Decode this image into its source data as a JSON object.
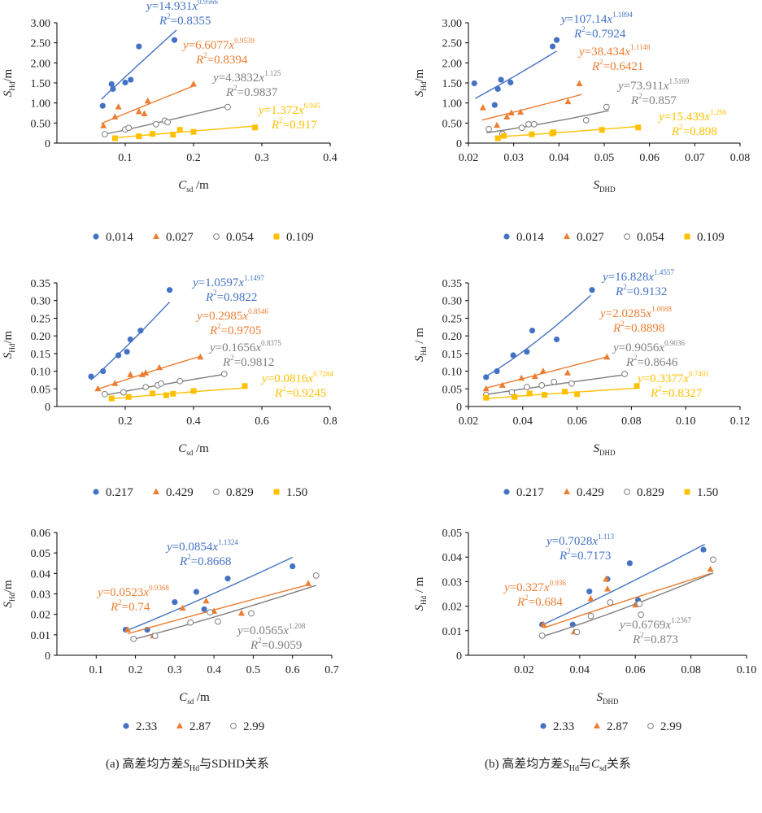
{
  "colors": {
    "s0": "#4472c4",
    "s1": "#ed7d31",
    "s2": "#7f7f7f",
    "s3": "#ffc000",
    "axis": "#000000",
    "text": "#222222"
  },
  "captions": [
    {
      "pre": "(a) 高差均方差",
      "sym": "S",
      "sub": "Hd",
      "post": "与SDHD关系"
    },
    {
      "pre": "(b) 高差均方差",
      "sym": "S",
      "sub": "Hd",
      "post": "与",
      "sym2": "C",
      "sub2": "sd",
      "post2": "关系"
    }
  ],
  "chart_data": [
    {
      "type": "scatter",
      "ylabel": "SHd/m",
      "xlabel": "Csd /m",
      "xlim": [
        0,
        0.4
      ],
      "xticks": [
        0.1,
        0.2,
        0.3,
        0.4
      ],
      "xtick_labels": [
        "0.1",
        "0.2",
        "0.3",
        "0.4"
      ],
      "ylim": [
        0,
        3.0
      ],
      "yticks": [
        0,
        0.5,
        1.0,
        1.5,
        2.0,
        2.5,
        3.0
      ],
      "ytick_labels": [
        "0",
        "0.50",
        "1.00",
        "1.50",
        "2.00",
        "2.50",
        "3.00"
      ],
      "legend_position": "bottom",
      "series": [
        {
          "name": "0.014",
          "marker": "circle",
          "x": [
            0.067,
            0.082,
            0.08,
            0.1,
            0.108,
            0.12,
            0.172
          ],
          "y": [
            0.93,
            1.35,
            1.47,
            1.51,
            1.58,
            2.41,
            2.57
          ],
          "fit": {
            "a": 14.931,
            "b": 0.9566,
            "coef": "14.931",
            "exp": "0.9566",
            "r2": "0.8355",
            "x0": 0.065,
            "x1": 0.175
          }
        },
        {
          "name": "0.027",
          "marker": "triangle",
          "x": [
            0.068,
            0.085,
            0.09,
            0.12,
            0.128,
            0.133,
            0.2
          ],
          "y": [
            0.43,
            0.65,
            0.9,
            0.78,
            0.73,
            1.05,
            1.47
          ],
          "fit": {
            "a": 6.6077,
            "b": 0.9539,
            "coef": "6.6077",
            "exp": "0.9539",
            "r2": "0.8394",
            "x0": 0.065,
            "x1": 0.2
          }
        },
        {
          "name": "0.054",
          "marker": "open-circle",
          "x": [
            0.07,
            0.1,
            0.105,
            0.145,
            0.158,
            0.162,
            0.25
          ],
          "y": [
            0.22,
            0.34,
            0.38,
            0.47,
            0.56,
            0.52,
            0.9
          ],
          "fit": {
            "a": 4.3832,
            "b": 1.125,
            "coef": "4.3832",
            "exp": "1.125",
            "r2": "0.9837",
            "x0": 0.07,
            "x1": 0.25
          }
        },
        {
          "name": "0.109",
          "marker": "square",
          "x": [
            0.085,
            0.12,
            0.14,
            0.17,
            0.18,
            0.2,
            0.29
          ],
          "y": [
            0.12,
            0.17,
            0.23,
            0.21,
            0.33,
            0.28,
            0.39
          ],
          "fit": {
            "a": 1.372,
            "b": 0.945,
            "coef": "1.372",
            "exp": "0.945",
            "r2": "0.917",
            "x0": 0.085,
            "x1": 0.29
          }
        }
      ]
    },
    {
      "type": "scatter",
      "ylabel": "SHd/m",
      "xlabel": "SDHD",
      "xlim": [
        0.02,
        0.08
      ],
      "xticks": [
        0.02,
        0.03,
        0.04,
        0.05,
        0.06,
        0.07,
        0.08
      ],
      "xtick_labels": [
        "0.02",
        "0.03",
        "0.04",
        "0.05",
        "0.06",
        "0.07",
        "0.08"
      ],
      "ylim": [
        0,
        3.0
      ],
      "yticks": [
        0,
        0.5,
        1.0,
        1.5,
        2.0,
        2.5,
        3.0
      ],
      "ytick_labels": [
        "0",
        "0.50",
        "1.00",
        "1.50",
        "2.00",
        "2.50",
        "3.00"
      ],
      "legend_position": "bottom",
      "series": [
        {
          "name": "0.014",
          "marker": "circle",
          "x": [
            0.0213,
            0.0258,
            0.0265,
            0.0272,
            0.0293,
            0.0386,
            0.0395
          ],
          "y": [
            1.49,
            0.95,
            1.35,
            1.58,
            1.51,
            2.41,
            2.57
          ],
          "fit": {
            "a": 107.14,
            "b": 1.1894,
            "coef": "107.14",
            "exp": "1.1894",
            "r2": "0.7924",
            "x0": 0.0215,
            "x1": 0.0395
          }
        },
        {
          "name": "0.027",
          "marker": "triangle",
          "x": [
            0.0232,
            0.0263,
            0.0285,
            0.0295,
            0.0315,
            0.042,
            0.0445
          ],
          "y": [
            0.88,
            0.44,
            0.65,
            0.75,
            0.77,
            1.03,
            1.48
          ],
          "fit": {
            "a": 38.434,
            "b": 1.1148,
            "coef": "38.434",
            "exp": "1.1148",
            "r2": "0.6421",
            "x0": 0.023,
            "x1": 0.045
          }
        },
        {
          "name": "0.054",
          "marker": "open-circle",
          "x": [
            0.0245,
            0.0275,
            0.0318,
            0.0333,
            0.0345,
            0.046,
            0.0505
          ],
          "y": [
            0.35,
            0.23,
            0.38,
            0.47,
            0.47,
            0.57,
            0.9
          ],
          "fit": {
            "a": 73.911,
            "b": 1.5169,
            "coef": "73.911",
            "exp": "1.5169",
            "r2": "0.857",
            "x0": 0.024,
            "x1": 0.051
          }
        },
        {
          "name": "0.109",
          "marker": "square",
          "x": [
            0.0265,
            0.0278,
            0.034,
            0.0385,
            0.0388,
            0.0495,
            0.0575
          ],
          "y": [
            0.12,
            0.18,
            0.22,
            0.24,
            0.27,
            0.33,
            0.39
          ],
          "fit": {
            "a": 15.439,
            "b": 1.266,
            "coef": "15.439",
            "exp": "1.266",
            "r2": "0.898",
            "x0": 0.0265,
            "x1": 0.0575
          }
        }
      ]
    },
    {
      "type": "scatter",
      "ylabel": "SHd/m",
      "xlabel": "Csd /m",
      "xlim": [
        0,
        0.8
      ],
      "xticks": [
        0.2,
        0.4,
        0.6,
        0.8
      ],
      "xtick_labels": [
        "0.2",
        "0.4",
        "0.6",
        "0.8"
      ],
      "ylim": [
        0,
        0.35
      ],
      "yticks": [
        0,
        0.05,
        0.1,
        0.15,
        0.2,
        0.25,
        0.3,
        0.35
      ],
      "ytick_labels": [
        "0",
        "0.05",
        "0.10",
        "0.15",
        "0.20",
        "0.25",
        "0.30",
        "0.35"
      ],
      "legend_position": "bottom",
      "series": [
        {
          "name": "0.217",
          "marker": "circle",
          "x": [
            0.1,
            0.135,
            0.18,
            0.205,
            0.215,
            0.245,
            0.33
          ],
          "y": [
            0.085,
            0.1,
            0.145,
            0.155,
            0.19,
            0.215,
            0.33
          ],
          "fit": {
            "a": 1.0597,
            "b": 1.1497,
            "coef": "1.0597",
            "exp": "1.1497",
            "r2": "0.9822",
            "x0": 0.1,
            "x1": 0.33
          }
        },
        {
          "name": "0.429",
          "marker": "triangle",
          "x": [
            0.12,
            0.17,
            0.215,
            0.25,
            0.26,
            0.3,
            0.42
          ],
          "y": [
            0.05,
            0.065,
            0.09,
            0.09,
            0.095,
            0.11,
            0.14
          ],
          "fit": {
            "a": 0.2985,
            "b": 0.8546,
            "coef": "0.2985",
            "exp": "0.8546",
            "r2": "0.9705",
            "x0": 0.12,
            "x1": 0.42
          }
        },
        {
          "name": "0.829",
          "marker": "open-circle",
          "x": [
            0.14,
            0.195,
            0.26,
            0.295,
            0.305,
            0.36,
            0.49
          ],
          "y": [
            0.035,
            0.04,
            0.055,
            0.06,
            0.065,
            0.072,
            0.092
          ],
          "fit": {
            "a": 0.1656,
            "b": 0.8375,
            "coef": "0.1656",
            "exp": "0.8375",
            "r2": "0.9812",
            "x0": 0.14,
            "x1": 0.49
          }
        },
        {
          "name": "1.50",
          "marker": "square",
          "x": [
            0.16,
            0.21,
            0.28,
            0.32,
            0.34,
            0.4,
            0.55
          ],
          "y": [
            0.023,
            0.027,
            0.037,
            0.032,
            0.036,
            0.044,
            0.058
          ],
          "fit": {
            "a": 0.0816,
            "b": 0.7284,
            "coef": "0.0816",
            "exp": "0.7284",
            "r2": "0.9245",
            "x0": 0.16,
            "x1": 0.55
          }
        }
      ]
    },
    {
      "type": "scatter",
      "ylabel": "SHd / m",
      "xlabel": "SDHD",
      "xlim": [
        0.02,
        0.12
      ],
      "xticks": [
        0.02,
        0.04,
        0.06,
        0.08,
        0.1,
        0.12
      ],
      "xtick_labels": [
        "0.02",
        "0.04",
        "0.06",
        "0.08",
        "0.10",
        "0.12"
      ],
      "ylim": [
        0,
        0.35
      ],
      "yticks": [
        0,
        0.05,
        0.1,
        0.15,
        0.2,
        0.25,
        0.3,
        0.35
      ],
      "ytick_labels": [
        "0",
        "0.05",
        "0.10",
        "0.15",
        "0.20",
        "0.25",
        "0.30",
        "0.35"
      ],
      "legend_position": "bottom",
      "series": [
        {
          "name": "0.217",
          "marker": "circle",
          "x": [
            0.0265,
            0.0305,
            0.0365,
            0.0415,
            0.0435,
            0.0525,
            0.0655
          ],
          "y": [
            0.083,
            0.1,
            0.145,
            0.155,
            0.215,
            0.19,
            0.33
          ],
          "fit": {
            "a": 16.828,
            "b": 1.4557,
            "coef": "16.828",
            "exp": "1.4557",
            "r2": "0.9132",
            "x0": 0.0265,
            "x1": 0.065
          }
        },
        {
          "name": "0.429",
          "marker": "triangle",
          "x": [
            0.0265,
            0.0325,
            0.0395,
            0.0445,
            0.0475,
            0.0565,
            0.071
          ],
          "y": [
            0.05,
            0.06,
            0.08,
            0.085,
            0.1,
            0.095,
            0.14
          ],
          "fit": {
            "a": 2.0285,
            "b": 1.0088,
            "coef": "2.0285",
            "exp": "1.0088",
            "r2": "0.8898",
            "x0": 0.0265,
            "x1": 0.071
          }
        },
        {
          "name": "0.829",
          "marker": "open-circle",
          "x": [
            0.0265,
            0.036,
            0.0415,
            0.047,
            0.0515,
            0.058,
            0.0775
          ],
          "y": [
            0.033,
            0.04,
            0.055,
            0.06,
            0.07,
            0.065,
            0.092
          ],
          "fit": {
            "a": 0.9056,
            "b": 0.9036,
            "coef": "0.9056",
            "exp": "0.9036",
            "r2": "0.8646",
            "x0": 0.0265,
            "x1": 0.0775
          }
        },
        {
          "name": "1.50",
          "marker": "square",
          "x": [
            0.0265,
            0.037,
            0.0425,
            0.048,
            0.0555,
            0.06,
            0.082
          ],
          "y": [
            0.025,
            0.027,
            0.037,
            0.033,
            0.042,
            0.035,
            0.058
          ],
          "fit": {
            "a": 0.3377,
            "b": 0.7491,
            "coef": "0.3377",
            "exp": "0.7491",
            "r2": "0.8327",
            "x0": 0.0265,
            "x1": 0.082
          }
        }
      ]
    },
    {
      "type": "scatter",
      "ylabel": "SHd/m",
      "xlabel": "Csd /m",
      "xlim": [
        0,
        0.7
      ],
      "xticks": [
        0.1,
        0.2,
        0.3,
        0.4,
        0.5,
        0.6,
        0.7
      ],
      "xtick_labels": [
        "0.1",
        "0.2",
        "0.3",
        "0.4",
        "0.5",
        "0.6",
        "0.7"
      ],
      "ylim": [
        0,
        0.06
      ],
      "yticks": [
        0,
        0.01,
        0.02,
        0.03,
        0.04,
        0.05,
        0.06
      ],
      "ytick_labels": [
        "0",
        "0.01",
        "0.02",
        "0.03",
        "0.04",
        "0.05",
        "0.06"
      ],
      "legend_position": "bottom",
      "series": [
        {
          "name": "2.33",
          "marker": "circle",
          "x": [
            0.175,
            0.23,
            0.3,
            0.355,
            0.375,
            0.435,
            0.6
          ],
          "y": [
            0.0125,
            0.0125,
            0.026,
            0.031,
            0.0225,
            0.0375,
            0.0435
          ],
          "fit": {
            "a": 0.0854,
            "b": 1.1324,
            "coef": "0.0854",
            "exp": "1.1324",
            "r2": "0.8668",
            "x0": 0.175,
            "x1": 0.6
          }
        },
        {
          "name": "2.87",
          "marker": "triangle",
          "x": [
            0.18,
            0.245,
            0.32,
            0.38,
            0.4,
            0.47,
            0.64
          ],
          "y": [
            0.0125,
            0.0095,
            0.023,
            0.0265,
            0.0215,
            0.0205,
            0.035
          ],
          "fit": {
            "a": 0.0523,
            "b": 0.9368,
            "coef": "0.0523",
            "exp": "0.9368",
            "r2": "0.74",
            "x0": 0.18,
            "x1": 0.64
          }
        },
        {
          "name": "2.99",
          "marker": "open-circle",
          "x": [
            0.195,
            0.25,
            0.34,
            0.39,
            0.41,
            0.495,
            0.66
          ],
          "y": [
            0.008,
            0.0095,
            0.016,
            0.021,
            0.0165,
            0.0205,
            0.039
          ],
          "fit": {
            "a": 0.0565,
            "b": 1.208,
            "coef": "0.0565",
            "exp": "1.208",
            "r2": "0.9059",
            "x0": 0.195,
            "x1": 0.66
          }
        }
      ]
    },
    {
      "type": "scatter",
      "ylabel": "SHd / m",
      "xlabel": "SDHD",
      "xlim": [
        0,
        0.1
      ],
      "xticks": [
        0.02,
        0.04,
        0.06,
        0.08,
        0.1
      ],
      "xtick_labels": [
        "0.02",
        "0.04",
        "0.06",
        "0.08",
        "0.10"
      ],
      "ylim": [
        0,
        0.05
      ],
      "yticks": [
        0,
        0.01,
        0.02,
        0.03,
        0.04,
        0.05
      ],
      "ytick_labels": [
        "0",
        "0.01",
        "0.02",
        "0.03",
        "0.04",
        "0.05"
      ],
      "legend_position": "bottom",
      "series": [
        {
          "name": "2.33",
          "marker": "circle",
          "x": [
            0.0265,
            0.0375,
            0.0435,
            0.05,
            0.058,
            0.061,
            0.0845
          ],
          "y": [
            0.0125,
            0.0125,
            0.026,
            0.031,
            0.0375,
            0.0225,
            0.043
          ],
          "fit": {
            "a": 0.7028,
            "b": 1.113,
            "coef": "0.7028",
            "exp": "1.113",
            "r2": "0.7173",
            "x0": 0.0265,
            "x1": 0.085
          }
        },
        {
          "name": "2.87",
          "marker": "triangle",
          "x": [
            0.027,
            0.038,
            0.044,
            0.05,
            0.0495,
            0.06,
            0.087
          ],
          "y": [
            0.0125,
            0.0095,
            0.023,
            0.027,
            0.031,
            0.0205,
            0.035
          ],
          "fit": {
            "a": 0.327,
            "b": 0.936,
            "coef": "0.327",
            "exp": "0.936",
            "r2": "0.684",
            "x0": 0.027,
            "x1": 0.087
          }
        },
        {
          "name": "2.99",
          "marker": "open-circle",
          "x": [
            0.0265,
            0.039,
            0.044,
            0.051,
            0.0615,
            0.062,
            0.088
          ],
          "y": [
            0.008,
            0.0095,
            0.016,
            0.0215,
            0.021,
            0.0165,
            0.039
          ],
          "fit": {
            "a": 0.6769,
            "b": 1.2367,
            "coef": "0.6769",
            "exp": "1.2367",
            "r2": "0.873",
            "x0": 0.0265,
            "x1": 0.088
          }
        }
      ]
    }
  ]
}
